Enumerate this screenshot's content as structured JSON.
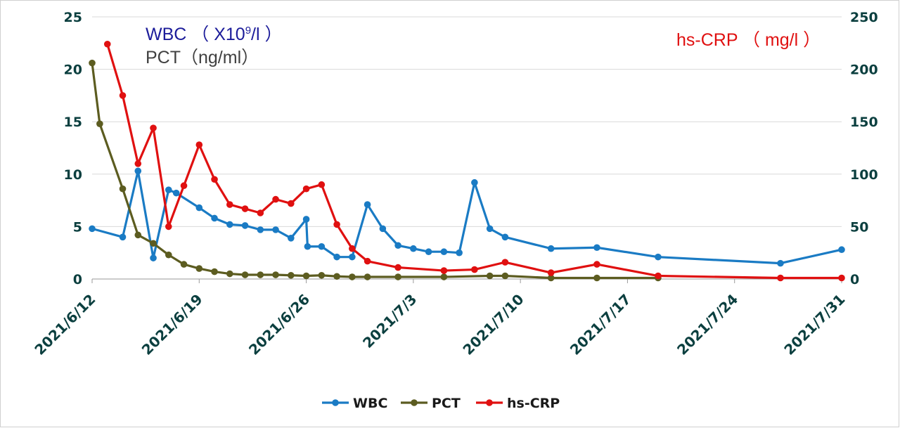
{
  "chart_data": {
    "type": "line",
    "x_start": "2021/6/12",
    "x_end": "2021/7/31",
    "x_ticks": [
      "2021/6/12",
      "2021/6/19",
      "2021/6/26",
      "2021/7/3",
      "2021/7/10",
      "2021/7/17",
      "2021/7/24",
      "2021/7/31"
    ],
    "y_left": {
      "ticks": [
        "25",
        "20",
        "15",
        "10",
        "5",
        "0"
      ],
      "range": [
        0,
        25
      ]
    },
    "y_right": {
      "ticks": [
        "250",
        "200",
        "150",
        "100",
        "50",
        "0"
      ],
      "range": [
        0,
        250
      ]
    },
    "left_title_line1": "WBC （ X10",
    "left_title_sup": "9",
    "left_title_line1_end": "/l ）",
    "left_title_line2": "PCT（ng/ml）",
    "right_title": "hs-CRP （ mg/l ）",
    "grid": "horizontal",
    "legend_placement": "bottom",
    "legend": [
      "WBC",
      "PCT",
      "hs-CRP"
    ],
    "series": [
      {
        "name": "WBC",
        "axis": "left",
        "color": "#1a7bc4",
        "points": [
          [
            "2021/6/12",
            4.8
          ],
          [
            "2021/6/14",
            4.0
          ],
          [
            "2021/6/15",
            10.3
          ],
          [
            "2021/6/16",
            2.0
          ],
          [
            "2021/6/17",
            8.5
          ],
          [
            "2021/6/17T12",
            8.2
          ],
          [
            "2021/6/19",
            6.8
          ],
          [
            "2021/6/20",
            5.8
          ],
          [
            "2021/6/21",
            5.2
          ],
          [
            "2021/6/22",
            5.1
          ],
          [
            "2021/6/23",
            4.7
          ],
          [
            "2021/6/24",
            4.7
          ],
          [
            "2021/6/25",
            3.9
          ],
          [
            "2021/6/26",
            5.7
          ],
          [
            "2021/6/26T02",
            3.1
          ],
          [
            "2021/6/27",
            3.1
          ],
          [
            "2021/6/28",
            2.1
          ],
          [
            "2021/6/29",
            2.1
          ],
          [
            "2021/6/30",
            7.1
          ],
          [
            "2021/7/1",
            4.8
          ],
          [
            "2021/7/2",
            3.2
          ],
          [
            "2021/7/3",
            2.9
          ],
          [
            "2021/7/4",
            2.6
          ],
          [
            "2021/7/5",
            2.6
          ],
          [
            "2021/7/6",
            2.5
          ],
          [
            "2021/7/7",
            9.2
          ],
          [
            "2021/7/8",
            4.8
          ],
          [
            "2021/7/9",
            4.0
          ],
          [
            "2021/7/12",
            2.9
          ],
          [
            "2021/7/15",
            3.0
          ],
          [
            "2021/7/19",
            2.1
          ],
          [
            "2021/7/27",
            1.5
          ],
          [
            "2021/7/31",
            2.8
          ]
        ]
      },
      {
        "name": "PCT",
        "axis": "left",
        "color": "#5c5c20",
        "points": [
          [
            "2021/6/12",
            20.6
          ],
          [
            "2021/6/12T12",
            14.8
          ],
          [
            "2021/6/14",
            8.6
          ],
          [
            "2021/6/15",
            4.2
          ],
          [
            "2021/6/16",
            3.4
          ],
          [
            "2021/6/17",
            2.3
          ],
          [
            "2021/6/18",
            1.4
          ],
          [
            "2021/6/19",
            1.0
          ],
          [
            "2021/6/20",
            0.7
          ],
          [
            "2021/6/21",
            0.5
          ],
          [
            "2021/6/22",
            0.4
          ],
          [
            "2021/6/23",
            0.4
          ],
          [
            "2021/6/24",
            0.4
          ],
          [
            "2021/6/25",
            0.35
          ],
          [
            "2021/6/26",
            0.3
          ],
          [
            "2021/6/27",
            0.35
          ],
          [
            "2021/6/28",
            0.25
          ],
          [
            "2021/6/29",
            0.2
          ],
          [
            "2021/6/30",
            0.2
          ],
          [
            "2021/7/2",
            0.2
          ],
          [
            "2021/7/5",
            0.2
          ],
          [
            "2021/7/8",
            0.3
          ],
          [
            "2021/7/9",
            0.3
          ],
          [
            "2021/7/12",
            0.1
          ],
          [
            "2021/7/15",
            0.1
          ],
          [
            "2021/7/19",
            0.1
          ]
        ]
      },
      {
        "name": "hs-CRP",
        "axis": "right",
        "color": "#e01010",
        "points": [
          [
            "2021/6/13",
            224
          ],
          [
            "2021/6/14",
            175
          ],
          [
            "2021/6/15",
            110
          ],
          [
            "2021/6/16",
            144
          ],
          [
            "2021/6/17",
            50
          ],
          [
            "2021/6/18",
            89
          ],
          [
            "2021/6/19",
            128
          ],
          [
            "2021/6/20",
            95
          ],
          [
            "2021/6/21",
            71
          ],
          [
            "2021/6/22",
            67
          ],
          [
            "2021/6/23",
            63
          ],
          [
            "2021/6/24",
            76
          ],
          [
            "2021/6/25",
            72
          ],
          [
            "2021/6/26",
            86
          ],
          [
            "2021/6/27",
            90
          ],
          [
            "2021/6/28",
            52
          ],
          [
            "2021/6/29",
            29
          ],
          [
            "2021/6/30",
            17
          ],
          [
            "2021/7/2",
            11
          ],
          [
            "2021/7/5",
            8
          ],
          [
            "2021/7/7",
            9
          ],
          [
            "2021/7/9",
            16
          ],
          [
            "2021/7/12",
            6
          ],
          [
            "2021/7/15",
            14
          ],
          [
            "2021/7/19",
            3
          ],
          [
            "2021/7/27",
            1
          ],
          [
            "2021/7/31",
            1
          ]
        ]
      }
    ]
  }
}
